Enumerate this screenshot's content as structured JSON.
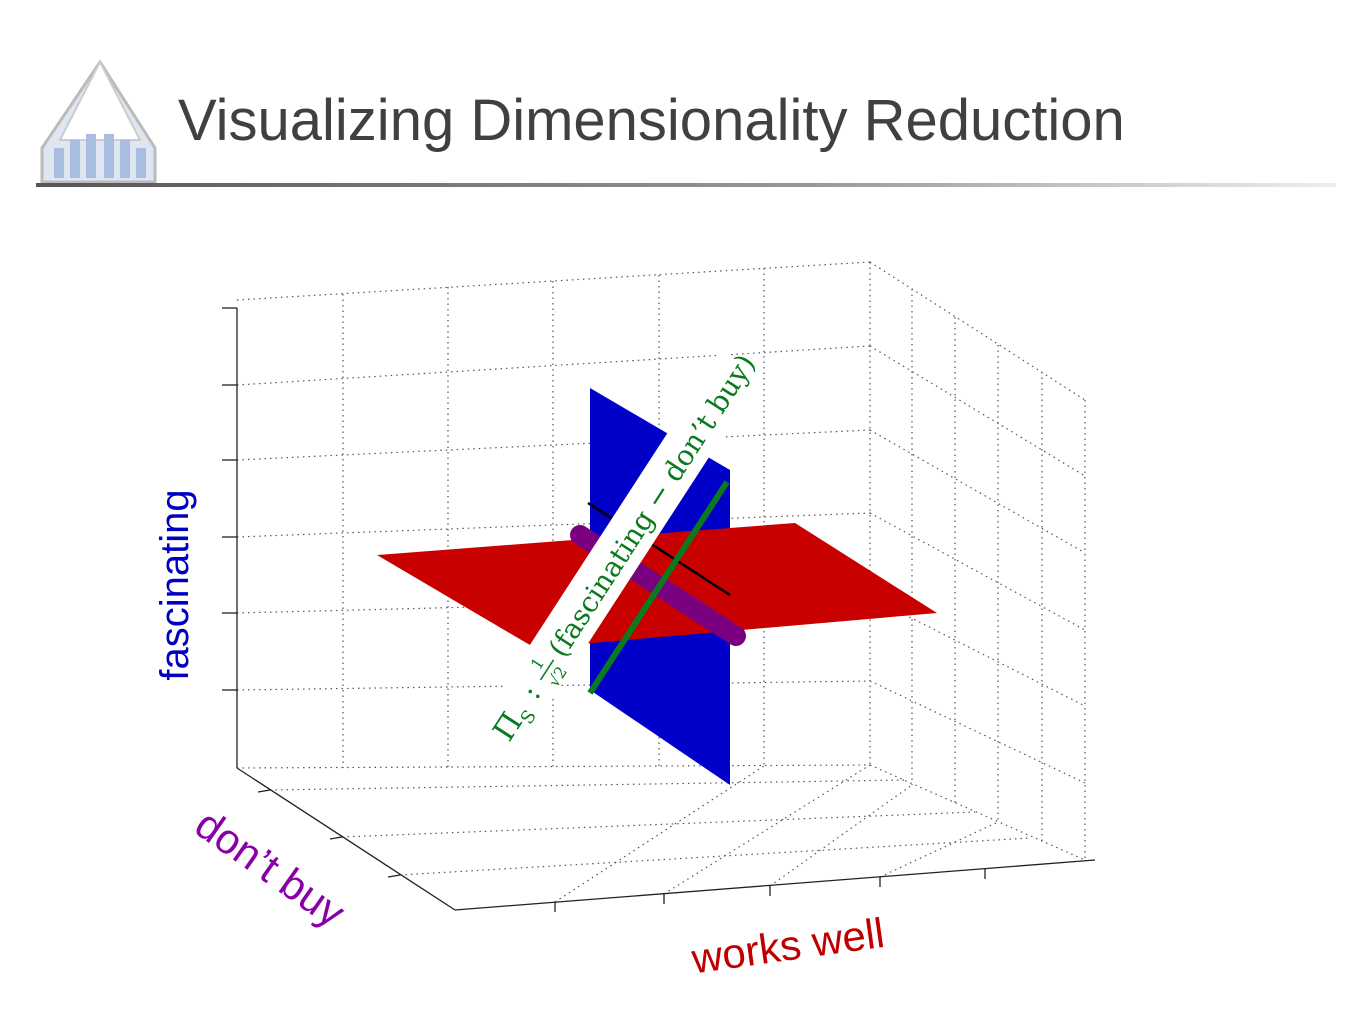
{
  "header": {
    "title": "Visualizing Dimensionality Reduction"
  },
  "plot": {
    "axis_labels": {
      "z": "fascinating",
      "y": "don’t buy",
      "x": "works well"
    },
    "annotation": {
      "symbol": "Π",
      "subscript": "S",
      "separator": ":",
      "numerator": "1",
      "denominator": "√2",
      "expression": "(fascinating − don’t buy)"
    }
  }
}
